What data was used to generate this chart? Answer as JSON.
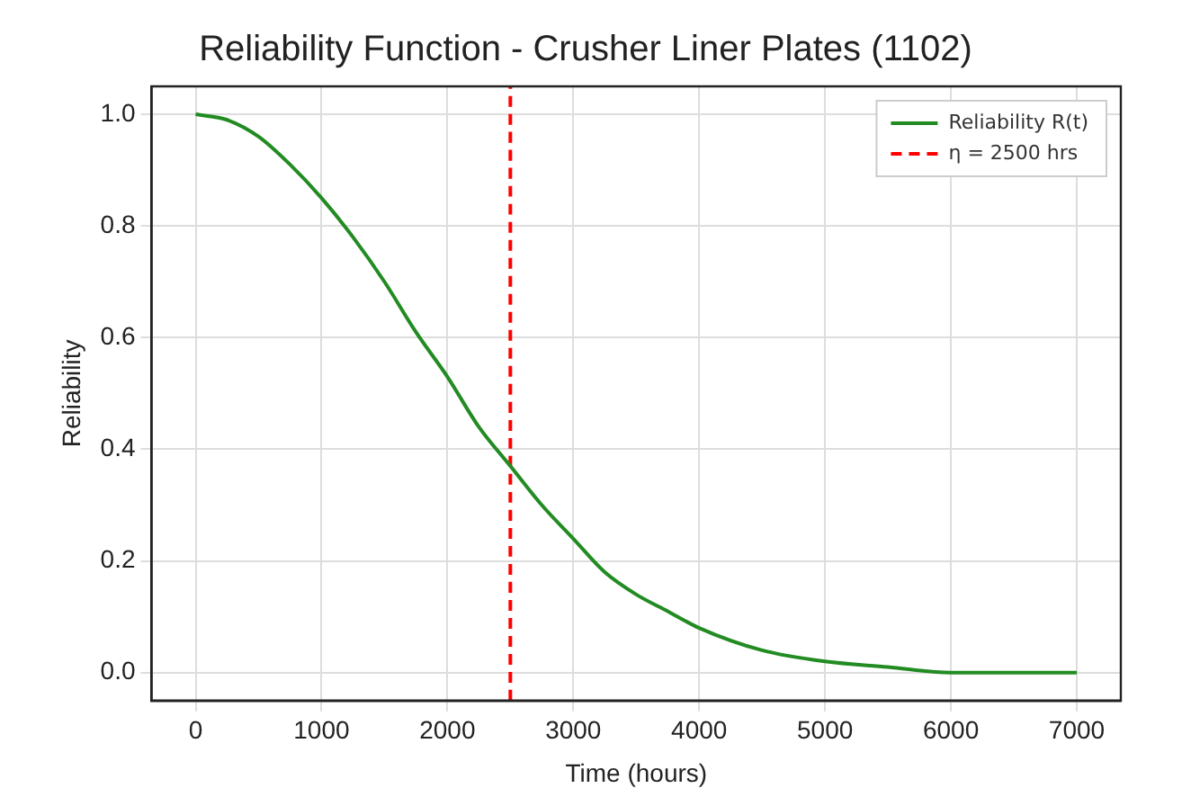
{
  "chart_data": {
    "type": "line",
    "title": "Reliability Function - Crusher Liner Plates (1102)",
    "xlabel": "Time (hours)",
    "ylabel": "Reliability",
    "x": [
      0,
      250,
      500,
      750,
      1000,
      1250,
      1500,
      1750,
      2000,
      2250,
      2500,
      2750,
      3000,
      3250,
      3500,
      3750,
      4000,
      4500,
      5000,
      5500,
      6000,
      6500,
      7000
    ],
    "series": [
      {
        "name": "Reliability R(t)",
        "color": "#228b22",
        "values": [
          1.0,
          0.99,
          0.96,
          0.91,
          0.85,
          0.78,
          0.7,
          0.61,
          0.53,
          0.44,
          0.37,
          0.3,
          0.24,
          0.18,
          0.14,
          0.11,
          0.08,
          0.04,
          0.02,
          0.01,
          0.0,
          0.0,
          0.0
        ]
      },
      {
        "name": "η = 2500 hrs",
        "color": "#ff0000",
        "line_style": "dashed",
        "x": [
          2500,
          2500
        ],
        "values": [
          -0.05,
          1.05
        ]
      }
    ],
    "xlim": [
      -350,
      7350
    ],
    "ylim": [
      -0.05,
      1.05
    ],
    "xticks": [
      0,
      1000,
      2000,
      3000,
      4000,
      5000,
      6000,
      7000
    ],
    "yticks": [
      {
        "value": 0,
        "label": "0.0"
      },
      {
        "value": 0.2,
        "label": "0.2"
      },
      {
        "value": 0.4,
        "label": "0.4"
      },
      {
        "value": 0.6,
        "label": "0.6"
      },
      {
        "value": 0.8,
        "label": "0.8"
      },
      {
        "value": 1,
        "label": "1.0"
      }
    ],
    "grid": true,
    "legend": "top right",
    "marker": "none",
    "line_style": "solid"
  }
}
